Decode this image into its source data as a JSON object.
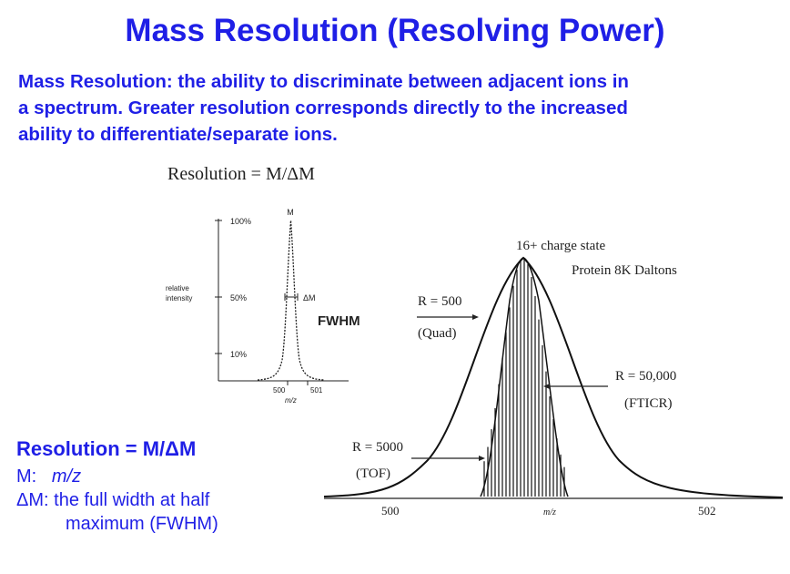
{
  "title": "Mass Resolution (Resolving Power)",
  "intro": [
    "Mass Resolution: the ability to discriminate between adjacent ions in",
    "a spectrum. Greater resolution corresponds directly to the increased",
    "ability to differentiate/separate ions."
  ],
  "resolution_formula": "Resolution = M/ΔM",
  "small_plot": {
    "peak_label": "M",
    "y_axis_label_line1": "relative",
    "y_axis_label_line2": "intensity",
    "ticks": [
      "100%",
      "50%",
      "10%"
    ],
    "delta_label": "ΔM",
    "fwhm_label": "FWHM",
    "x_ticks": [
      "500",
      "501"
    ],
    "x_axis_label": "m/z"
  },
  "large_plot": {
    "charge_state": "16+ charge state",
    "protein": "Protein 8K Daltons",
    "quad_r": "R = 500",
    "quad_name": "(Quad)",
    "ftcir_r": "R = 50,000",
    "ftcir_name": "(FTICR)",
    "tof_r": "R = 5000",
    "tof_name": "(TOF)",
    "x_left": "500",
    "x_mid": "m/z",
    "x_right": "502"
  },
  "definitions": {
    "title": "Resolution = M/ΔM",
    "m_line_prefix": "M:",
    "m_line_value": "m/z",
    "dm_line1": "ΔM: the full width at half",
    "dm_line2": "maximum (FWHM)"
  }
}
